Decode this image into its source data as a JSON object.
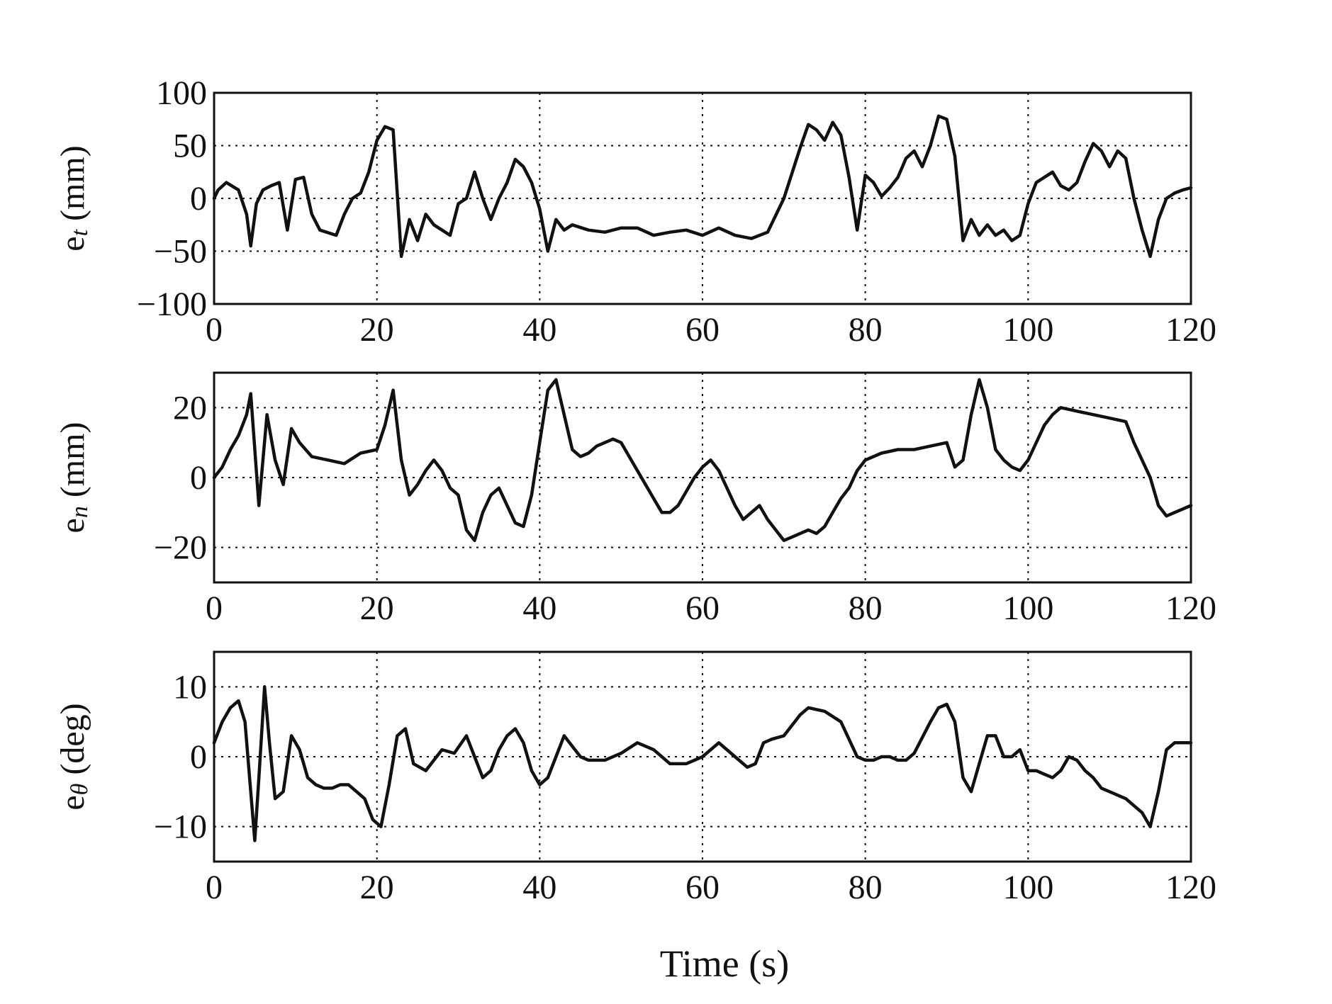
{
  "chart_data": [
    {
      "type": "line",
      "ylabel_main": "e",
      "ylabel_sub": "t",
      "ylabel_unit": "(mm)",
      "xlim": [
        0,
        120
      ],
      "ylim": [
        -100,
        100
      ],
      "xticks": [
        0,
        20,
        40,
        60,
        80,
        100,
        120
      ],
      "yticks": [
        -100,
        -50,
        0,
        50,
        100
      ],
      "xtick_labels": [
        "0",
        "20",
        "40",
        "60",
        "80",
        "100",
        "120"
      ],
      "ytick_labels": [
        "−100",
        "−50",
        "0",
        "50",
        "100"
      ],
      "grid": true,
      "series": [
        {
          "name": "e_t",
          "x": [
            0,
            0.5,
            1.5,
            3,
            4,
            4.5,
            5.2,
            6,
            7,
            8,
            9,
            10,
            11,
            12,
            13,
            15,
            16,
            17,
            18,
            19,
            20,
            21,
            22,
            23,
            24,
            25,
            26,
            27,
            28,
            29,
            30,
            31,
            32,
            33,
            34,
            35,
            36,
            37,
            38,
            39,
            40,
            41,
            42,
            43,
            44,
            46,
            48,
            50,
            52,
            54,
            56,
            58,
            60,
            62,
            64,
            66,
            68,
            70,
            72,
            73,
            74,
            75,
            76,
            77,
            78,
            79,
            80,
            81,
            82,
            83,
            84,
            85,
            86,
            87,
            88,
            89,
            90,
            91,
            92,
            93,
            94,
            95,
            96,
            97,
            98,
            99,
            100,
            101,
            102,
            103,
            104,
            105,
            106,
            107,
            108,
            109,
            110,
            111,
            112,
            113,
            114,
            115,
            116,
            117,
            118,
            119,
            120
          ],
          "y": [
            0,
            8,
            15,
            8,
            -15,
            -45,
            -5,
            8,
            12,
            15,
            -30,
            18,
            20,
            -15,
            -30,
            -35,
            -15,
            0,
            5,
            25,
            55,
            68,
            65,
            -55,
            -20,
            -40,
            -15,
            -25,
            -30,
            -35,
            -5,
            0,
            25,
            0,
            -20,
            0,
            15,
            37,
            30,
            15,
            -10,
            -50,
            -20,
            -30,
            -25,
            -30,
            -32,
            -28,
            -28,
            -35,
            -32,
            -30,
            -35,
            -28,
            -35,
            -38,
            -32,
            0,
            48,
            70,
            65,
            55,
            72,
            60,
            20,
            -30,
            22,
            15,
            2,
            10,
            20,
            38,
            45,
            30,
            50,
            78,
            75,
            40,
            -40,
            -20,
            -35,
            -25,
            -35,
            -30,
            -40,
            -35,
            -5,
            15,
            20,
            25,
            12,
            8,
            15,
            35,
            52,
            45,
            30,
            45,
            38,
            0,
            -30,
            -55,
            -20,
            0,
            5,
            8,
            10
          ]
        }
      ]
    },
    {
      "type": "line",
      "ylabel_main": "e",
      "ylabel_sub": "n",
      "ylabel_unit": "(mm)",
      "xlim": [
        0,
        120
      ],
      "ylim": [
        -30,
        30
      ],
      "xticks": [
        0,
        20,
        40,
        60,
        80,
        100,
        120
      ],
      "yticks": [
        -20,
        0,
        20
      ],
      "xtick_labels": [
        "0",
        "20",
        "40",
        "60",
        "80",
        "100",
        "120"
      ],
      "ytick_labels": [
        "−20",
        "0",
        "20"
      ],
      "grid": true,
      "series": [
        {
          "name": "e_n",
          "x": [
            0,
            1,
            2,
            3,
            4,
            4.5,
            5.5,
            6.5,
            7.5,
            8.5,
            9.5,
            10.5,
            12,
            14,
            16,
            18,
            20,
            21,
            22,
            23,
            24,
            25,
            26,
            27,
            28,
            29,
            30,
            31,
            32,
            33,
            34,
            35,
            36,
            37,
            38,
            39,
            40,
            41,
            42,
            43,
            44,
            45,
            46,
            47,
            48,
            49,
            50,
            51,
            52,
            53,
            54,
            55,
            56,
            57,
            58,
            59,
            60,
            61,
            62,
            63,
            64,
            65,
            66,
            67,
            68,
            69,
            70,
            71,
            72,
            73,
            74,
            75,
            76,
            77,
            78,
            79,
            80,
            82,
            84,
            86,
            88,
            90,
            91,
            92,
            93,
            94,
            95,
            96,
            97,
            98,
            99,
            100,
            101,
            102,
            103,
            104,
            106,
            108,
            110,
            112,
            113,
            114,
            115,
            116,
            117,
            118,
            119,
            120
          ],
          "y": [
            0,
            3,
            8,
            12,
            18,
            24,
            -8,
            18,
            5,
            -2,
            14,
            10,
            6,
            5,
            4,
            7,
            8,
            15,
            25,
            5,
            -5,
            -2,
            2,
            5,
            2,
            -3,
            -5,
            -15,
            -18,
            -10,
            -5,
            -3,
            -8,
            -13,
            -14,
            -5,
            10,
            25,
            28,
            18,
            8,
            6,
            7,
            9,
            10,
            11,
            10,
            6,
            2,
            -2,
            -6,
            -10,
            -10,
            -8,
            -4,
            0,
            3,
            5,
            2,
            -3,
            -8,
            -12,
            -10,
            -8,
            -12,
            -15,
            -18,
            -17,
            -16,
            -15,
            -16,
            -14,
            -10,
            -6,
            -3,
            2,
            5,
            7,
            8,
            8,
            9,
            10,
            3,
            5,
            18,
            28,
            20,
            8,
            5,
            3,
            2,
            5,
            10,
            15,
            18,
            20,
            19,
            18,
            17,
            16,
            10,
            5,
            0,
            -8,
            -11,
            -10,
            -9,
            -8
          ]
        }
      ]
    },
    {
      "type": "line",
      "ylabel_main": "e",
      "ylabel_sub": "θ",
      "ylabel_unit": "(deg)",
      "xlabel": "Time (s)",
      "xlim": [
        0,
        120
      ],
      "ylim": [
        -15,
        15
      ],
      "xticks": [
        0,
        20,
        40,
        60,
        80,
        100,
        120
      ],
      "yticks": [
        -10,
        0,
        10
      ],
      "xtick_labels": [
        "0",
        "20",
        "40",
        "60",
        "80",
        "100",
        "120"
      ],
      "ytick_labels": [
        "−10",
        "0",
        "10"
      ],
      "grid": true,
      "series": [
        {
          "name": "e_theta",
          "x": [
            0,
            1,
            2,
            3,
            3.8,
            4.5,
            5.0,
            5.5,
            6.2,
            6.8,
            7.5,
            8.5,
            9.5,
            10.5,
            11.5,
            12.5,
            13.5,
            14.5,
            15.5,
            16.5,
            17.5,
            18.5,
            19.5,
            20.5,
            21.5,
            22.5,
            23.5,
            24.5,
            26,
            28,
            29.5,
            31,
            32,
            33,
            34,
            35,
            36,
            37,
            38,
            39,
            40,
            41,
            42,
            43,
            44,
            45,
            46,
            48,
            50,
            52,
            54,
            56,
            58,
            60,
            62,
            64,
            65.5,
            66.5,
            67.5,
            68.5,
            70,
            72,
            73,
            75,
            77,
            79,
            80,
            81,
            82,
            83,
            84,
            85,
            86,
            88,
            89,
            90,
            91,
            92,
            93,
            94,
            95,
            96,
            97,
            98,
            99,
            100,
            101,
            102,
            103,
            104,
            105,
            106,
            107,
            108,
            109,
            110,
            111,
            112,
            113,
            114,
            115,
            116,
            117,
            118,
            119,
            120
          ],
          "y": [
            2,
            5,
            7,
            8,
            5,
            -5,
            -12,
            -3,
            10,
            2,
            -6,
            -5,
            3,
            1,
            -3,
            -4,
            -4.5,
            -4.5,
            -4,
            -4,
            -5,
            -6,
            -9,
            -10,
            -4,
            3,
            4,
            -1,
            -2,
            1,
            0.5,
            3,
            0,
            -3,
            -2,
            1,
            3,
            4,
            2,
            -2,
            -4,
            -3,
            0,
            3,
            1.5,
            0,
            -0.5,
            -0.5,
            0.5,
            2,
            1,
            -1,
            -1,
            0,
            2,
            0,
            -1.5,
            -1,
            2,
            2.5,
            3,
            6,
            7,
            6.5,
            5,
            0,
            -0.5,
            -0.5,
            0,
            0,
            -0.5,
            -0.5,
            0.5,
            5,
            7,
            7.5,
            5,
            -3,
            -5,
            -1,
            3,
            3,
            0,
            0,
            1,
            -2,
            -2,
            -2.5,
            -3,
            -2,
            0,
            -0.5,
            -2,
            -3,
            -4.5,
            -5,
            -5.5,
            -6,
            -7,
            -8,
            -10,
            -5,
            1,
            2,
            2,
            2
          ]
        }
      ]
    }
  ]
}
